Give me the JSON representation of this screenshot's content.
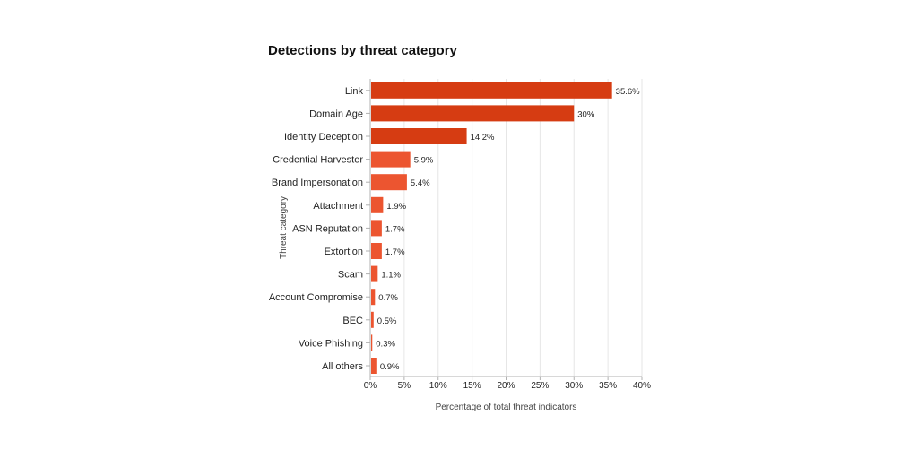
{
  "chart_data": {
    "type": "bar",
    "orientation": "horizontal",
    "title": "Detections by threat category",
    "xlabel": "Percentage of total threat indicators",
    "ylabel": "Threat category",
    "xlim": [
      0,
      40
    ],
    "xticks": [
      "0%",
      "5%",
      "10%",
      "15%",
      "20%",
      "25%",
      "30%",
      "35%",
      "40%"
    ],
    "grid": "vertical",
    "categories": [
      "Link",
      "Domain Age",
      "Identity Deception",
      "Credential Harvester",
      "Brand Impersonation",
      "Attachment",
      "ASN Reputation",
      "Extortion",
      "Scam",
      "Account Compromise",
      "BEC",
      "Voice Phishing",
      "All others"
    ],
    "values": [
      35.6,
      30,
      14.2,
      5.9,
      5.4,
      1.9,
      1.7,
      1.7,
      1.1,
      0.7,
      0.5,
      0.3,
      0.9
    ],
    "value_labels": [
      "35.6%",
      "30%",
      "14.2%",
      "5.9%",
      "5.4%",
      "1.9%",
      "1.7%",
      "1.7%",
      "1.1%",
      "0.7%",
      "0.5%",
      "0.3%",
      "0.9%"
    ],
    "colors": {
      "bar_dark": "#d63c12",
      "bar_light": "#ec5530",
      "grid": "#e6e6e6",
      "axis": "#b0b0b0"
    }
  }
}
